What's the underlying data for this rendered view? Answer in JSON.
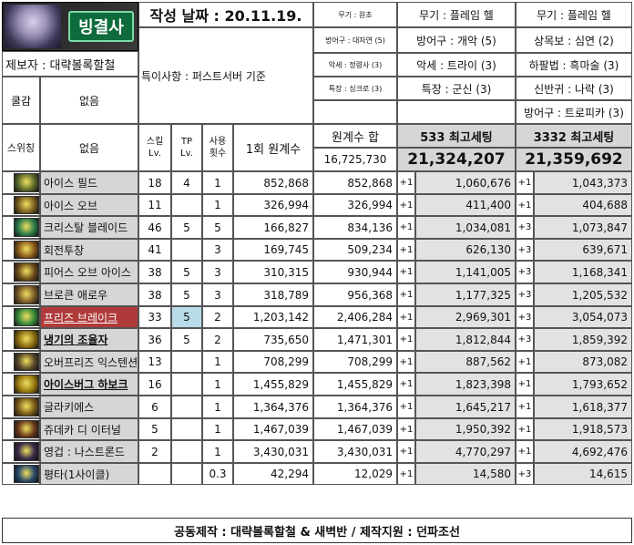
{
  "header": {
    "logo_text": "빙결사",
    "date_label": "작성 날짜 : 20.11.19.",
    "reporter": "제보자 : 대략볼록할철",
    "note": "특이사항 : 퍼스트서버 기준",
    "row_labels": {
      "drought": "쿨감",
      "switching": "스위칭"
    },
    "drought_value": "없음",
    "switching_value": "없음"
  },
  "base_gear": [
    "무기 : 원초",
    "방어구 : 대자연 (5)",
    "악세 : 정령사 (3)",
    "특장 : 싱크로 (3)"
  ],
  "gear533": [
    "무기 : 플레임 헬",
    "방어구 : 개악 (5)",
    "악세 : 트라이 (3)",
    "특장 : 군신 (3)"
  ],
  "gear3332": [
    "무기 : 플레임 헬",
    "상목보 : 심연 (2)",
    "하팔법 : 흑마술 (3)",
    "신반귀 : 나락 (3)",
    "방어구 : 트로피카 (3)"
  ],
  "table": {
    "col_skill": "스킬\nLv.",
    "col_tp": "TP\nLv.",
    "col_uses": "사용\n횟수",
    "col_once": "1회 원계수",
    "col_sum": "원계수 합",
    "sum_total": "16,725,730",
    "col_533": "533 최고세팅",
    "total_533": "21,324,207",
    "col_3332": "3332 최고세팅",
    "total_3332": "21,359,692"
  },
  "rows": [
    {
      "name": "아이스 필드",
      "skill": "18",
      "tp": "4",
      "uses": "1",
      "once": "852,868",
      "sum": "852,868",
      "p533": "+1",
      "v533": "1,060,676",
      "p3332": "+1",
      "v3332": "1,043,373",
      "color": "#5a6a2a"
    },
    {
      "name": "아이스 오브",
      "skill": "11",
      "tp": "",
      "uses": "1",
      "once": "326,994",
      "sum": "326,994",
      "p533": "+1",
      "v533": "411,400",
      "p3332": "+1",
      "v3332": "404,688",
      "color": "#7a6020"
    },
    {
      "name": "크리스탈 블레이드",
      "skill": "46",
      "tp": "5",
      "uses": "5",
      "once": "166,827",
      "sum": "834,136",
      "p533": "+1",
      "v533": "1,034,081",
      "p3332": "+3",
      "v3332": "1,073,847",
      "color": "#2a7a4a"
    },
    {
      "name": "회전투창",
      "skill": "41",
      "tp": "",
      "uses": "3",
      "once": "169,745",
      "sum": "509,234",
      "p533": "+1",
      "v533": "626,130",
      "p3332": "+3",
      "v3332": "639,671",
      "color": "#8a5a1a"
    },
    {
      "name": "피어스 오브 아이스",
      "skill": "38",
      "tp": "5",
      "uses": "3",
      "once": "310,315",
      "sum": "930,944",
      "p533": "+1",
      "v533": "1,141,005",
      "p3332": "+3",
      "v3332": "1,168,341",
      "color": "#6a4a1a"
    },
    {
      "name": "브로큰 애로우",
      "skill": "38",
      "tp": "5",
      "uses": "3",
      "once": "318,789",
      "sum": "956,368",
      "p533": "+1",
      "v533": "1,177,325",
      "p3332": "+3",
      "v3332": "1,205,532",
      "color": "#7a5a2a"
    },
    {
      "name": "프리즈 브레이크",
      "skill": "33",
      "tp": "5",
      "uses": "2",
      "once": "1,203,142",
      "sum": "2,406,284",
      "p533": "+1",
      "v533": "2,969,301",
      "p3332": "+3",
      "v3332": "3,054,073",
      "color": "#3a8a3a"
    },
    {
      "name": "냉기의 조율자",
      "skill": "36",
      "tp": "5",
      "uses": "2",
      "once": "735,650",
      "sum": "1,471,301",
      "p533": "+1",
      "v533": "1,812,844",
      "p3332": "+3",
      "v3332": "1,859,392",
      "color": "#8a6a10"
    },
    {
      "name": "오버프리즈 익스텐션",
      "skill": "13",
      "tp": "",
      "uses": "1",
      "once": "708,299",
      "sum": "708,299",
      "p533": "+1",
      "v533": "887,562",
      "p3332": "+1",
      "v3332": "873,082",
      "color": "#5a4a2a"
    },
    {
      "name": "아이스버그 하보크",
      "skill": "16",
      "tp": "",
      "uses": "1",
      "once": "1,455,829",
      "sum": "1,455,829",
      "p533": "+1",
      "v533": "1,823,398",
      "p3332": "+1",
      "v3332": "1,793,652",
      "color": "#9a7a10"
    },
    {
      "name": "글라키에스",
      "skill": "6",
      "tp": "",
      "uses": "1",
      "once": "1,364,376",
      "sum": "1,364,376",
      "p533": "+1",
      "v533": "1,645,217",
      "p3332": "+1",
      "v3332": "1,618,377",
      "color": "#7a5a1a"
    },
    {
      "name": "쥬데카 디 이터널",
      "skill": "5",
      "tp": "",
      "uses": "1",
      "once": "1,467,039",
      "sum": "1,467,039",
      "p533": "+1",
      "v533": "1,950,392",
      "p3332": "+1",
      "v3332": "1,918,573",
      "color": "#6a3a1a"
    },
    {
      "name": "영겁 : 나스트론드",
      "skill": "2",
      "tp": "",
      "uses": "1",
      "once": "3,430,031",
      "sum": "3,430,031",
      "p533": "+1",
      "v533": "4,770,297",
      "p3332": "+1",
      "v3332": "4,692,476",
      "color": "#3a2a4a"
    },
    {
      "name": "평타(1사이클)",
      "skill": "",
      "tp": "",
      "uses": "0.3",
      "once": "42,294",
      "sum": "12,029",
      "p533": "+1",
      "v533": "14,580",
      "p3332": "+3",
      "v3332": "14,615",
      "color": "#2a4a6a"
    }
  ],
  "footer": "공동제작 : 대략볼록할철 & 새벽반 / 제작지원 : 던파조선"
}
